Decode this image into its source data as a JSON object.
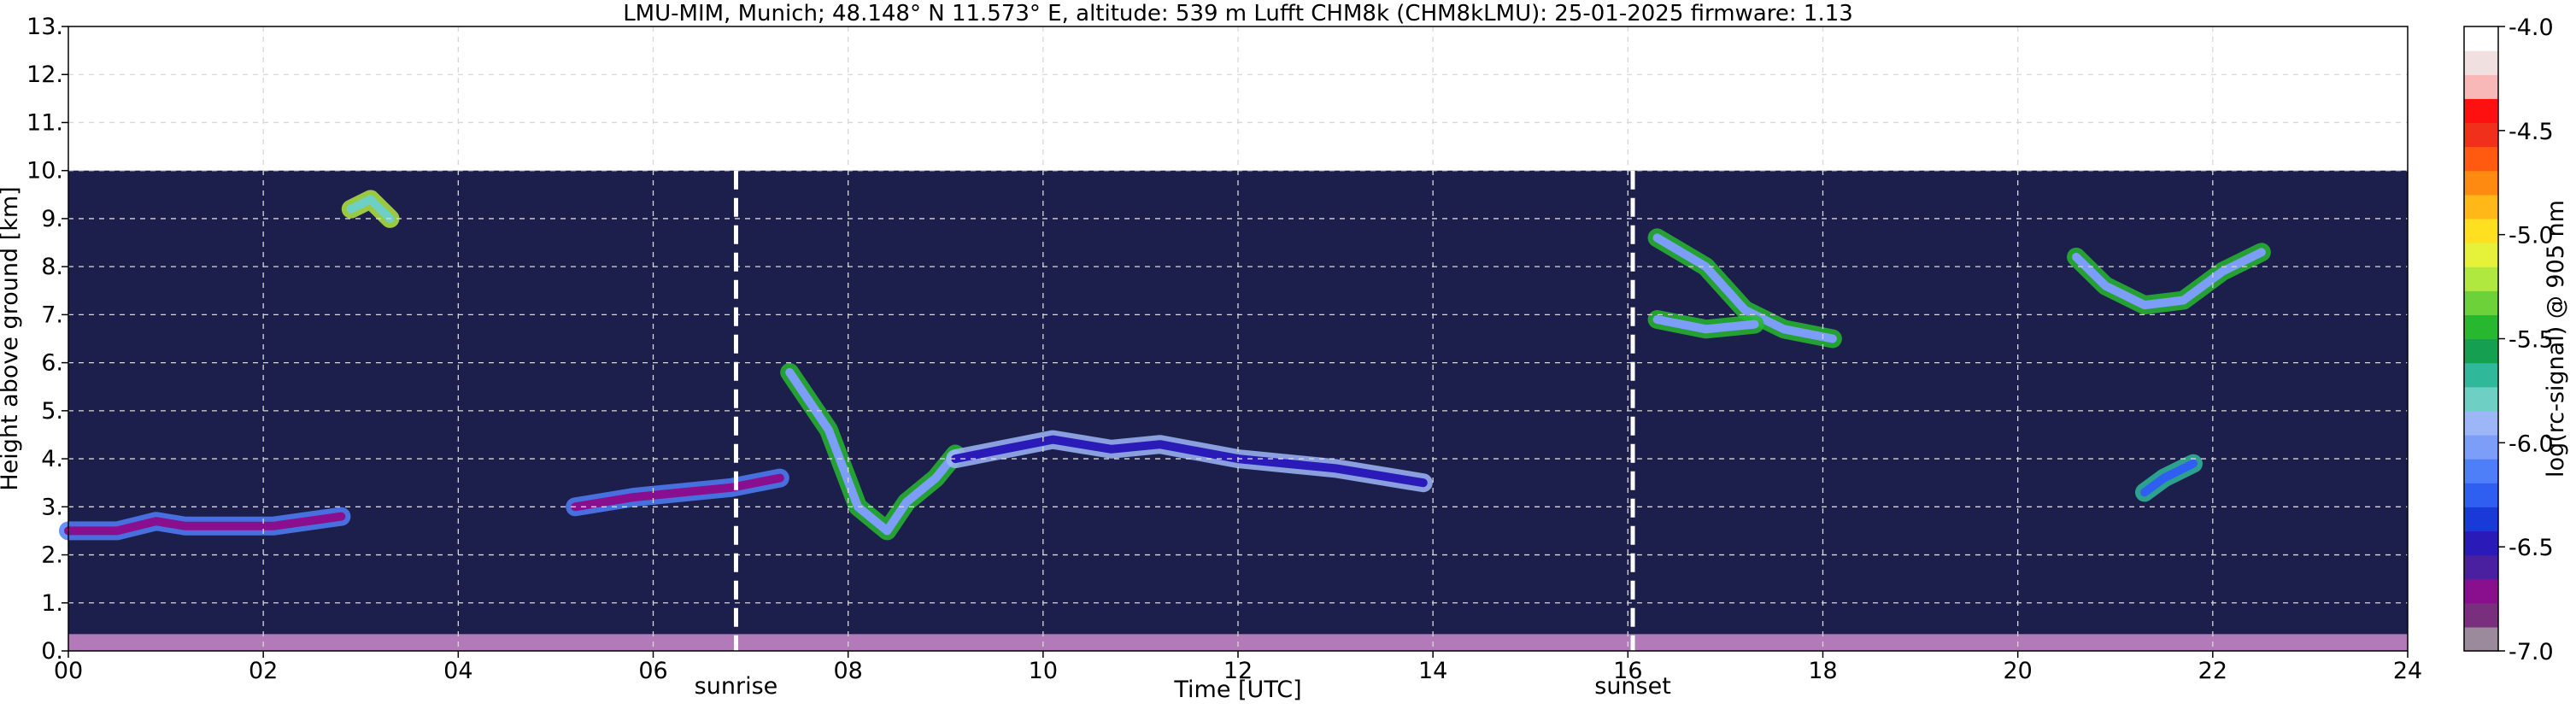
{
  "chart_data": {
    "type": "heatmap",
    "title": "LMU-MIM, Munich; 48.148° N 11.573° E, altitude: 539 m    Lufft CHM8k (CHM8kLMU): 25-01-2025    firmware: 1.13",
    "xlabel": "Time [UTC]",
    "ylabel": "Height above ground [km]",
    "xlim": [
      0,
      24
    ],
    "ylim": [
      0,
      13
    ],
    "x_ticks": [
      {
        "value": 0,
        "label": "00"
      },
      {
        "value": 2,
        "label": "02"
      },
      {
        "value": 4,
        "label": "04"
      },
      {
        "value": 6,
        "label": "06"
      },
      {
        "value": 8,
        "label": "08"
      },
      {
        "value": 10,
        "label": "10"
      },
      {
        "value": 12,
        "label": "12"
      },
      {
        "value": 14,
        "label": "14"
      },
      {
        "value": 16,
        "label": "16"
      },
      {
        "value": 18,
        "label": "18"
      },
      {
        "value": 20,
        "label": "20"
      },
      {
        "value": 22,
        "label": "22"
      },
      {
        "value": 24,
        "label": "24"
      }
    ],
    "y_ticks": [
      {
        "value": 0,
        "label": "0."
      },
      {
        "value": 1,
        "label": "1."
      },
      {
        "value": 2,
        "label": "2."
      },
      {
        "value": 3,
        "label": "3."
      },
      {
        "value": 4,
        "label": "4."
      },
      {
        "value": 5,
        "label": "5."
      },
      {
        "value": 6,
        "label": "6."
      },
      {
        "value": 7,
        "label": "7."
      },
      {
        "value": 8,
        "label": "8."
      },
      {
        "value": 9,
        "label": "9."
      },
      {
        "value": 10,
        "label": "10."
      },
      {
        "value": 11,
        "label": "11."
      },
      {
        "value": 12,
        "label": "12."
      },
      {
        "value": 13,
        "label": "13."
      }
    ],
    "grid": true,
    "data_top_km": 10,
    "events": [
      {
        "time": 6.85,
        "label": "sunrise"
      },
      {
        "time": 16.05,
        "label": "sunset"
      }
    ],
    "colorbar": {
      "label": "log(rc-signal) @ 905 nm",
      "range": [
        -7.0,
        -4.0
      ],
      "ticks": [
        {
          "value": -4.0,
          "label": "-4.0"
        },
        {
          "value": -4.5,
          "label": "-4.5"
        },
        {
          "value": -5.0,
          "label": "-5.0"
        },
        {
          "value": -5.5,
          "label": "-5.5"
        },
        {
          "value": -6.0,
          "label": "-6.0"
        },
        {
          "value": -6.5,
          "label": "-6.5"
        },
        {
          "value": -7.0,
          "label": "-7.0"
        }
      ],
      "colors": [
        "#9a8a9c",
        "#7a2e7e",
        "#8a0f8f",
        "#4a1fa0",
        "#2a1ab8",
        "#1a3ad8",
        "#2f5ff0",
        "#4f7ff8",
        "#7c9ef8",
        "#9cb6f8",
        "#6ed0c4",
        "#2fb89a",
        "#14a050",
        "#27b830",
        "#6dd23a",
        "#b0e840",
        "#e6f23a",
        "#ffe020",
        "#ffb818",
        "#ff8a12",
        "#ff5a10",
        "#f0301a",
        "#ff1010",
        "#f8b8b8",
        "#f0e0e0",
        "#ffffff"
      ]
    },
    "layers": [
      {
        "name": "background",
        "color": "#1c1f4c"
      },
      {
        "name": "near-ground",
        "range_km": [
          0,
          0.35
        ],
        "color": "#b27ab8"
      }
    ],
    "features": [
      {
        "name": "low cloud night",
        "points": [
          [
            0.0,
            2.5
          ],
          [
            0.5,
            2.5
          ],
          [
            0.9,
            2.7
          ],
          [
            1.2,
            2.6
          ],
          [
            1.7,
            2.6
          ],
          [
            2.1,
            2.6
          ],
          [
            2.8,
            2.8
          ]
        ],
        "value": -4.3
      },
      {
        "name": "cloud 05-07",
        "points": [
          [
            5.2,
            3.0
          ],
          [
            5.8,
            3.2
          ],
          [
            6.3,
            3.3
          ],
          [
            6.8,
            3.4
          ],
          [
            7.3,
            3.6
          ]
        ],
        "value": -4.3
      },
      {
        "name": "descending layer",
        "points": [
          [
            7.4,
            5.8
          ],
          [
            7.8,
            4.6
          ],
          [
            8.1,
            3.0
          ],
          [
            8.4,
            2.5
          ],
          [
            8.6,
            3.1
          ],
          [
            8.9,
            3.6
          ],
          [
            9.1,
            4.1
          ]
        ],
        "value": -5.0
      },
      {
        "name": "mid cloud day",
        "points": [
          [
            9.1,
            4.0
          ],
          [
            9.6,
            4.2
          ],
          [
            10.1,
            4.4
          ],
          [
            10.7,
            4.2
          ],
          [
            11.2,
            4.3
          ],
          [
            12.0,
            4.0
          ],
          [
            13.0,
            3.8
          ],
          [
            13.9,
            3.5
          ]
        ],
        "value": -4.5
      },
      {
        "name": "high cloud evening 1",
        "points": [
          [
            16.3,
            8.6
          ],
          [
            16.8,
            8.0
          ],
          [
            17.2,
            7.1
          ],
          [
            17.6,
            6.7
          ],
          [
            18.1,
            6.5
          ]
        ],
        "value": -5.0
      },
      {
        "name": "high cloud evening 2",
        "points": [
          [
            16.3,
            6.9
          ],
          [
            16.8,
            6.7
          ],
          [
            17.3,
            6.8
          ]
        ],
        "value": -5.0
      },
      {
        "name": "high cloud night 1",
        "points": [
          [
            20.6,
            8.2
          ],
          [
            20.9,
            7.6
          ],
          [
            21.3,
            7.2
          ],
          [
            21.7,
            7.3
          ],
          [
            22.1,
            7.9
          ],
          [
            22.5,
            8.3
          ]
        ],
        "value": -5.0
      },
      {
        "name": "isolated cloud 21",
        "points": [
          [
            21.3,
            3.3
          ],
          [
            21.5,
            3.6
          ],
          [
            21.8,
            3.9
          ]
        ],
        "value": -4.7
      },
      {
        "name": "cirrus 03",
        "points": [
          [
            2.9,
            9.2
          ],
          [
            3.1,
            9.4
          ],
          [
            3.3,
            9.0
          ]
        ],
        "value": -5.2
      }
    ]
  }
}
